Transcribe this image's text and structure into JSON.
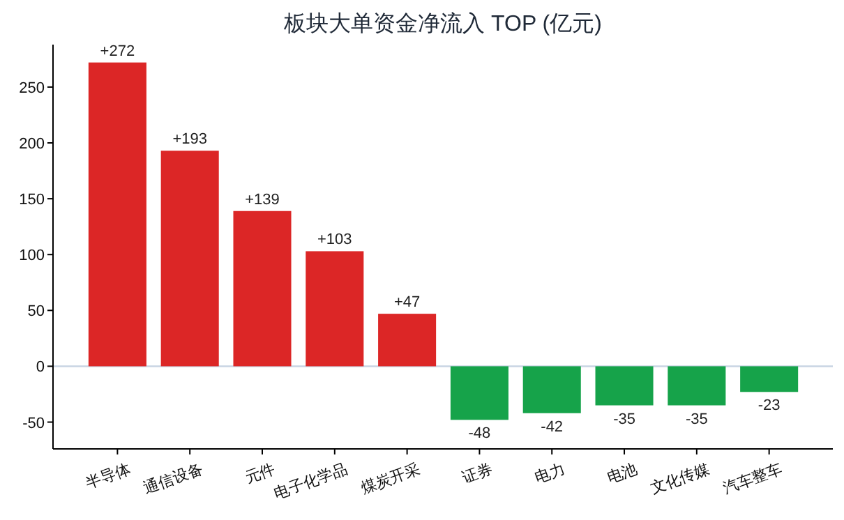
{
  "chart_data": {
    "type": "bar",
    "title": "板块大单资金净流入 TOP (亿元)",
    "categories": [
      "半导体",
      "通信设备",
      "元件",
      "电子化学品",
      "煤炭开采",
      "证券",
      "电力",
      "电池",
      "文化传媒",
      "汽车整车"
    ],
    "values": [
      272,
      193,
      139,
      103,
      47,
      -48,
      -42,
      -35,
      -35,
      -23
    ],
    "colors": [
      "#dc2626",
      "#dc2626",
      "#dc2626",
      "#dc2626",
      "#dc2626",
      "#16a34a",
      "#16a34a",
      "#16a34a",
      "#16a34a",
      "#16a34a"
    ],
    "value_labels": [
      "+272",
      "+193",
      "+139",
      "+103",
      "+47",
      "-48",
      "-42",
      "-35",
      "-35",
      "-23"
    ],
    "ylim": [
      -74,
      288
    ],
    "yticks": [
      -50,
      0,
      50,
      100,
      150,
      200,
      250
    ],
    "ref_lines": [
      {
        "axis": "y",
        "value": 0,
        "color": "#c8d4e3"
      }
    ],
    "grid": false
  }
}
